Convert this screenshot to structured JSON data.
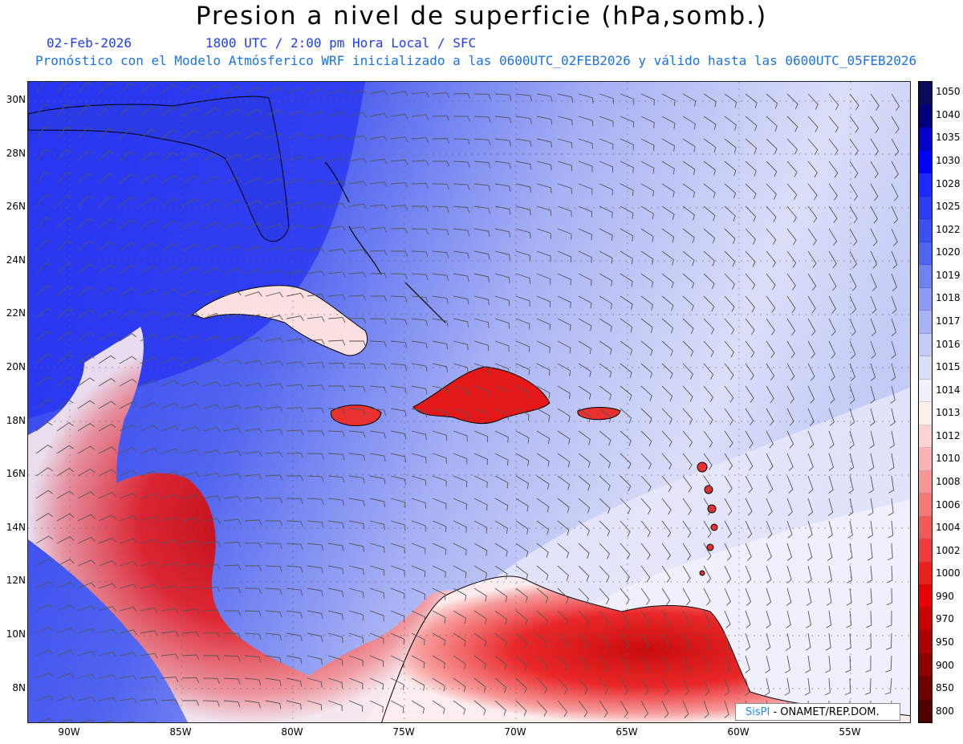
{
  "title": "Presion a nivel de superficie (hPa,somb.)",
  "date": "02-Feb-2026",
  "time_line": "1800 UTC / 2:00 pm Hora Local / SFC",
  "init_line": "Pronóstico con el Modelo Atmósferico WRF inicializado a las 0600UTC_02FEB2026 y válido hasta las  0600UTC_05FEB2026",
  "lat_labels": [
    "30N",
    "28N",
    "26N",
    "24N",
    "22N",
    "20N",
    "18N",
    "16N",
    "14N",
    "12N",
    "10N",
    "8N"
  ],
  "lon_labels": [
    "90W",
    "85W",
    "80W",
    "75W",
    "70W",
    "65W",
    "60W",
    "55W"
  ],
  "colorbar": {
    "levels": [
      "1050",
      "1040",
      "1035",
      "1030",
      "1028",
      "1025",
      "1022",
      "1020",
      "1019",
      "1018",
      "1017",
      "1016",
      "1015",
      "1014",
      "1013",
      "1012",
      "1010",
      "1008",
      "1006",
      "1004",
      "1002",
      "1000",
      "990",
      "970",
      "950",
      "900",
      "850",
      "800"
    ],
    "colors": [
      "#0a0a5a",
      "#00007a",
      "#0000c8",
      "#0000ff",
      "#1e28ff",
      "#2d3cf0",
      "#3c50f0",
      "#5064f0",
      "#6e82f0",
      "#8c9af2",
      "#a8b2f4",
      "#c4cbf6",
      "#dcdff8",
      "#f0f0fb",
      "#fdeeee",
      "#fcd2d2",
      "#fab4b4",
      "#f89696",
      "#f57878",
      "#f25a5a",
      "#ef3c3c",
      "#eb1e1e",
      "#e60000",
      "#c80000",
      "#aa0000",
      "#8c0000",
      "#6e0000",
      "#500000"
    ]
  },
  "credit": {
    "brand": "SisPI",
    "text": " - ONAMET/REP.DOM."
  }
}
